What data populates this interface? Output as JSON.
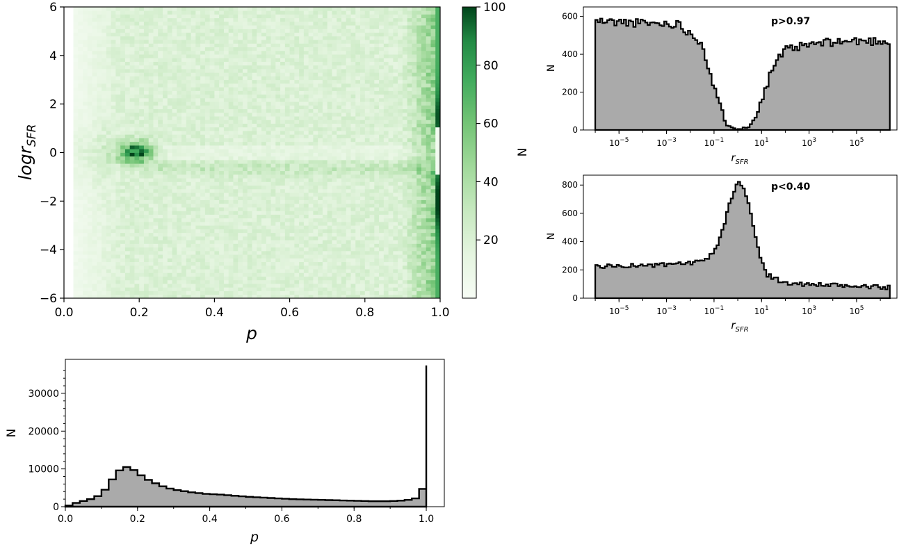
{
  "chart_data": [
    {
      "type": "heatmap",
      "panel": "main",
      "xlabel": "p",
      "ylabel_base": "logr",
      "ylabel_sub": "SFR",
      "xlim": [
        0.0,
        1.0
      ],
      "ylim": [
        -6,
        6
      ],
      "xticks": [
        0.0,
        0.2,
        0.4,
        0.6,
        0.8,
        1.0
      ],
      "xtick_labels": [
        "0.0",
        "0.2",
        "0.4",
        "0.6",
        "0.8",
        "1.0"
      ],
      "yticks": [
        -6,
        -4,
        -2,
        0,
        2,
        4,
        6
      ],
      "ytick_labels": [
        "−6",
        "−4",
        "−2",
        "0",
        "2",
        "4",
        "6"
      ],
      "colorbar": {
        "label": "N",
        "range": [
          0,
          100
        ],
        "ticks": [
          20,
          40,
          60,
          80,
          100
        ],
        "tick_labels": [
          "20",
          "40",
          "60",
          "80",
          "100"
        ],
        "cmap": "Greens",
        "color_low": "#f7fcf5",
        "color_high": "#00441b"
      },
      "bins": [
        80,
        80
      ],
      "features": {
        "cluster": {
          "p": 0.19,
          "logr": 0.0,
          "peak": 72
        },
        "edge_band_p": 0.985,
        "edge_gap_logr": [
          -0.9,
          1.0
        ],
        "min_p": 0.03
      }
    },
    {
      "type": "bar",
      "panel": "top-right",
      "annotation": "p>0.97",
      "xlabel_base": "r",
      "xlabel_sub": "SFR",
      "ylabel": "N",
      "xscale": "log",
      "xlim_log10": [
        -6.5,
        6.7
      ],
      "ylim": [
        0,
        650
      ],
      "yticks": [
        0,
        200,
        400,
        600
      ],
      "ytick_labels": [
        "0",
        "200",
        "400",
        "600"
      ],
      "xtick_exponents": [
        -5,
        -3,
        -1,
        1,
        3,
        5
      ],
      "bin_range_log10": [
        -6,
        6.4
      ],
      "bin_count": 124,
      "envelope_log10": [
        [
          -6,
          575
        ],
        [
          -4,
          565
        ],
        [
          -2.5,
          560
        ],
        [
          -1.5,
          460
        ],
        [
          -1.0,
          220
        ],
        [
          -0.5,
          30
        ],
        [
          0,
          5
        ],
        [
          0.5,
          15
        ],
        [
          1.0,
          160
        ],
        [
          1.5,
          340
        ],
        [
          2.0,
          420
        ],
        [
          3.0,
          450
        ],
        [
          4.0,
          465
        ],
        [
          5.0,
          470
        ],
        [
          6.4,
          470
        ]
      ]
    },
    {
      "type": "bar",
      "panel": "middle-right",
      "annotation": "p<0.40",
      "xlabel_base": "r",
      "xlabel_sub": "SFR",
      "ylabel": "N",
      "xscale": "log",
      "xlim_log10": [
        -6.5,
        6.7
      ],
      "ylim": [
        0,
        870
      ],
      "yticks": [
        0,
        200,
        400,
        600,
        800
      ],
      "ytick_labels": [
        "0",
        "200",
        "400",
        "600",
        "800"
      ],
      "xtick_exponents": [
        -5,
        -3,
        -1,
        1,
        3,
        5
      ],
      "bin_range_log10": [
        -6,
        6.4
      ],
      "bin_count": 124,
      "envelope_log10": [
        [
          -6,
          225
        ],
        [
          -3,
          235
        ],
        [
          -1.5,
          255
        ],
        [
          -1.0,
          320
        ],
        [
          -0.6,
          500
        ],
        [
          -0.3,
          700
        ],
        [
          0,
          815
        ],
        [
          0.25,
          790
        ],
        [
          0.5,
          640
        ],
        [
          0.8,
          380
        ],
        [
          1.2,
          170
        ],
        [
          2.0,
          105
        ],
        [
          4.0,
          90
        ],
        [
          6.4,
          75
        ]
      ]
    },
    {
      "type": "bar",
      "panel": "bottom",
      "xlabel": "p",
      "ylabel": "N",
      "xlim": [
        0.0,
        1.05
      ],
      "ylim": [
        0,
        39000
      ],
      "xticks": [
        0.0,
        0.2,
        0.4,
        0.6,
        0.8,
        1.0
      ],
      "xtick_labels": [
        "0.0",
        "0.2",
        "0.4",
        "0.6",
        "0.8",
        "1.0"
      ],
      "yticks": [
        0,
        10000,
        20000,
        30000
      ],
      "ytick_labels": [
        "0",
        "10000",
        "20000",
        "30000"
      ],
      "bin_width": 0.02,
      "values": [
        300,
        1000,
        1500,
        2000,
        2800,
        4500,
        7200,
        9600,
        10500,
        9700,
        8300,
        7100,
        6200,
        5400,
        4800,
        4400,
        4100,
        3800,
        3600,
        3400,
        3300,
        3200,
        3050,
        2900,
        2750,
        2600,
        2500,
        2400,
        2300,
        2200,
        2100,
        2000,
        1950,
        1900,
        1850,
        1800,
        1750,
        1700,
        1650,
        1600,
        1550,
        1500,
        1450,
        1450,
        1450,
        1500,
        1600,
        1800,
        2200,
        4700,
        37400
      ]
    }
  ]
}
